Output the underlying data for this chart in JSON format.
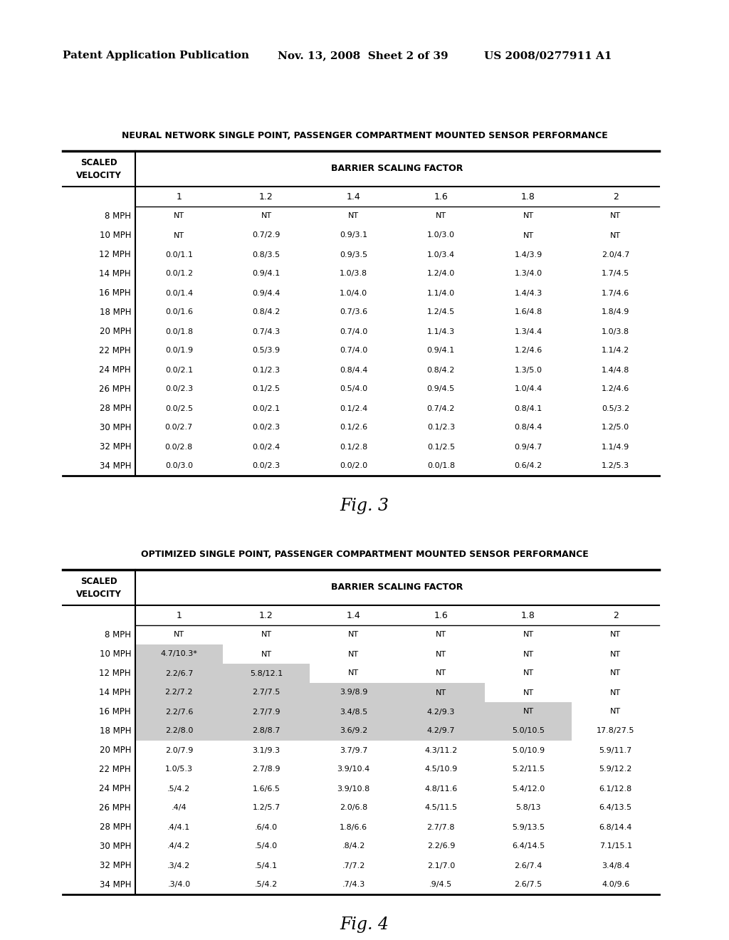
{
  "header_left": "Patent Application Publication",
  "header_mid": "Nov. 13, 2008  Sheet 2 of 39",
  "header_right": "US 2008/0277911 A1",
  "table1_title": "NEURAL NETWORK SINGLE POINT, PASSENGER COMPARTMENT MOUNTED SENSOR PERFORMANCE",
  "table2_title": "OPTIMIZED SINGLE POINT, PASSENGER COMPARTMENT MOUNTED SENSOR PERFORMANCE",
  "col_header": "BARRIER SCALING FACTOR",
  "row_label": "SCALED\nVELOCITY",
  "cols": [
    "1",
    "1.2",
    "1.4",
    "1.6",
    "1.8",
    "2"
  ],
  "table1_rows": [
    [
      "8 MPH",
      "NT",
      "NT",
      "NT",
      "NT",
      "NT",
      "NT"
    ],
    [
      "10 MPH",
      "NT",
      "0.7/2.9",
      "0.9/3.1",
      "1.0/3.0",
      "NT",
      "NT"
    ],
    [
      "12 MPH",
      "0.0/1.1",
      "0.8/3.5",
      "0.9/3.5",
      "1.0/3.4",
      "1.4/3.9",
      "2.0/4.7"
    ],
    [
      "14 MPH",
      "0.0/1.2",
      "0.9/4.1",
      "1.0/3.8",
      "1.2/4.0",
      "1.3/4.0",
      "1.7/4.5"
    ],
    [
      "16 MPH",
      "0.0/1.4",
      "0.9/4.4",
      "1.0/4.0",
      "1.1/4.0",
      "1.4/4.3",
      "1.7/4.6"
    ],
    [
      "18 MPH",
      "0.0/1.6",
      "0.8/4.2",
      "0.7/3.6",
      "1.2/4.5",
      "1.6/4.8",
      "1.8/4.9"
    ],
    [
      "20 MPH",
      "0.0/1.8",
      "0.7/4.3",
      "0.7/4.0",
      "1.1/4.3",
      "1.3/4.4",
      "1.0/3.8"
    ],
    [
      "22 MPH",
      "0.0/1.9",
      "0.5/3.9",
      "0.7/4.0",
      "0.9/4.1",
      "1.2/4.6",
      "1.1/4.2"
    ],
    [
      "24 MPH",
      "0.0/2.1",
      "0.1/2.3",
      "0.8/4.4",
      "0.8/4.2",
      "1.3/5.0",
      "1.4/4.8"
    ],
    [
      "26 MPH",
      "0.0/2.3",
      "0.1/2.5",
      "0.5/4.0",
      "0.9/4.5",
      "1.0/4.4",
      "1.2/4.6"
    ],
    [
      "28 MPH",
      "0.0/2.5",
      "0.0/2.1",
      "0.1/2.4",
      "0.7/4.2",
      "0.8/4.1",
      "0.5/3.2"
    ],
    [
      "30 MPH",
      "0.0/2.7",
      "0.0/2.3",
      "0.1/2.6",
      "0.1/2.3",
      "0.8/4.4",
      "1.2/5.0"
    ],
    [
      "32 MPH",
      "0.0/2.8",
      "0.0/2.4",
      "0.1/2.8",
      "0.1/2.5",
      "0.9/4.7",
      "1.1/4.9"
    ],
    [
      "34 MPH",
      "0.0/3.0",
      "0.0/2.3",
      "0.0/2.0",
      "0.0/1.8",
      "0.6/4.2",
      "1.2/5.3"
    ]
  ],
  "fig3_label": "Fig. 3",
  "table2_rows": [
    [
      "8 MPH",
      "NT",
      "NT",
      "NT",
      "NT",
      "NT",
      "NT"
    ],
    [
      "10 MPH",
      "4.7/10.3*",
      "NT",
      "NT",
      "NT",
      "NT",
      "NT"
    ],
    [
      "12 MPH",
      "2.2/6.7",
      "5.8/12.1",
      "NT",
      "NT",
      "NT",
      "NT"
    ],
    [
      "14 MPH",
      "2.2/7.2",
      "2.7/7.5",
      "3.9/8.9",
      "NT",
      "NT",
      "NT"
    ],
    [
      "16 MPH",
      "2.2/7.6",
      "2.7/7.9",
      "3.4/8.5",
      "4.2/9.3",
      "NT",
      "NT"
    ],
    [
      "18 MPH",
      "2.2/8.0",
      "2.8/8.7",
      "3.6/9.2",
      "4.2/9.7",
      "5.0/10.5",
      "17.8/27.5"
    ],
    [
      "20 MPH",
      "2.0/7.9",
      "3.1/9.3",
      "3.7/9.7",
      "4.3/11.2",
      "5.0/10.9",
      "5.9/11.7"
    ],
    [
      "22 MPH",
      "1.0/5.3",
      "2.7/8.9",
      "3.9/10.4",
      "4.5/10.9",
      "5.2/11.5",
      "5.9/12.2"
    ],
    [
      "24 MPH",
      ".5/4.2",
      "1.6/6.5",
      "3.9/10.8",
      "4.8/11.6",
      "5.4/12.0",
      "6.1/12.8"
    ],
    [
      "26 MPH",
      ".4/4",
      "1.2/5.7",
      "2.0/6.8",
      "4.5/11.5",
      "5.8/13",
      "6.4/13.5"
    ],
    [
      "28 MPH",
      ".4/4.1",
      ".6/4.0",
      "1.8/6.6",
      "2.7/7.8",
      "5.9/13.5",
      "6.8/14.4"
    ],
    [
      "30 MPH",
      ".4/4.2",
      ".5/4.0",
      ".8/4.2",
      "2.2/6.9",
      "6.4/14.5",
      "7.1/15.1"
    ],
    [
      "32 MPH",
      ".3/4.2",
      ".5/4.1",
      ".7/7.2",
      "2.1/7.0",
      "2.6/7.4",
      "3.4/8.4"
    ],
    [
      "34 MPH",
      ".3/4.0",
      ".5/4.2",
      ".7/4.3",
      ".9/4.5",
      "2.6/7.5",
      "4.0/9.6"
    ]
  ],
  "table2_shaded": [
    [
      1,
      0
    ],
    [
      2,
      0
    ],
    [
      2,
      1
    ],
    [
      3,
      0
    ],
    [
      3,
      1
    ],
    [
      3,
      2
    ],
    [
      3,
      3
    ],
    [
      4,
      0
    ],
    [
      4,
      1
    ],
    [
      4,
      2
    ],
    [
      4,
      3
    ],
    [
      4,
      4
    ],
    [
      5,
      0
    ],
    [
      5,
      1
    ],
    [
      5,
      2
    ],
    [
      5,
      3
    ],
    [
      5,
      4
    ]
  ],
  "fig4_label": "Fig. 4",
  "bg_color": "#ffffff",
  "text_color": "#000000",
  "line_color": "#000000",
  "shade_color": "#cccccc"
}
